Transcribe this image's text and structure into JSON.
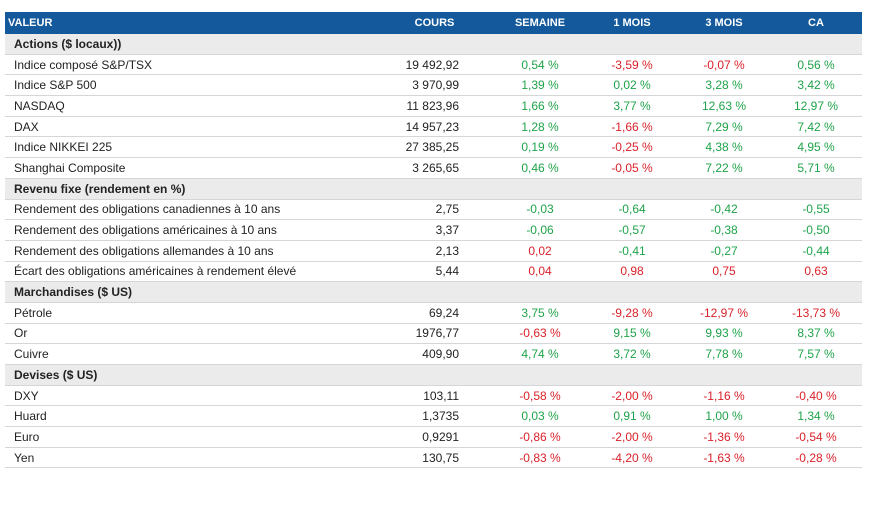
{
  "table": {
    "header": [
      "VALEUR",
      "COURS",
      "SEMAINE",
      "1 MOIS",
      "3 MOIS",
      "CA"
    ],
    "sections": [
      {
        "title": "Actions ($ locaux))",
        "rows": [
          {
            "label": "Indice composé S&P/TSX",
            "cours": "19 492,92",
            "changes": [
              "0,54 %",
              "-3,59 %",
              "-0,07 %",
              "0,56 %"
            ],
            "tones": [
              "green",
              "red",
              "red",
              "green"
            ]
          },
          {
            "label": "Indice S&P 500",
            "cours": "3 970,99",
            "changes": [
              "1,39 %",
              "0,02 %",
              "3,28 %",
              "3,42 %"
            ],
            "tones": [
              "green",
              "green",
              "green",
              "green"
            ]
          },
          {
            "label": "NASDAQ",
            "cours": "11 823,96",
            "changes": [
              "1,66 %",
              "3,77 %",
              "12,63 %",
              "12,97 %"
            ],
            "tones": [
              "green",
              "green",
              "green",
              "green"
            ]
          },
          {
            "label": "DAX",
            "cours": "14 957,23",
            "changes": [
              "1,28 %",
              "-1,66 %",
              "7,29 %",
              "7,42 %"
            ],
            "tones": [
              "green",
              "red",
              "green",
              "green"
            ]
          },
          {
            "label": "Indice NIKKEI 225",
            "cours": "27 385,25",
            "changes": [
              "0,19 %",
              "-0,25 %",
              "4,38 %",
              "4,95 %"
            ],
            "tones": [
              "green",
              "red",
              "green",
              "green"
            ]
          },
          {
            "label": "Shanghai Composite",
            "cours": "3 265,65",
            "changes": [
              "0,46 %",
              "-0,05 %",
              "7,22 %",
              "5,71 %"
            ],
            "tones": [
              "green",
              "red",
              "green",
              "green"
            ]
          }
        ]
      },
      {
        "title": "Revenu fixe (rendement en %)",
        "rows": [
          {
            "label": "Rendement des obligations canadiennes à 10 ans",
            "cours": "2,75",
            "changes": [
              "-0,03",
              "-0,64",
              "-0,42",
              "-0,55"
            ],
            "tones": [
              "green",
              "green",
              "green",
              "green"
            ]
          },
          {
            "label": "Rendement des obligations américaines à 10 ans",
            "cours": "3,37",
            "changes": [
              "-0,06",
              "-0,57",
              "-0,38",
              "-0,50"
            ],
            "tones": [
              "green",
              "green",
              "green",
              "green"
            ]
          },
          {
            "label": "Rendement des obligations allemandes à 10 ans",
            "cours": "2,13",
            "changes": [
              "0,02",
              "-0,41",
              "-0,27",
              "-0,44"
            ],
            "tones": [
              "red",
              "green",
              "green",
              "green"
            ]
          },
          {
            "label": "Écart des obligations américaines à rendement élevé",
            "cours": "5,44",
            "changes": [
              "0,04",
              "0,98",
              "0,75",
              "0,63"
            ],
            "tones": [
              "red",
              "red",
              "red",
              "red"
            ]
          }
        ]
      },
      {
        "title": "Marchandises ($ US)",
        "rows": [
          {
            "label": "Pétrole",
            "cours": "69,24",
            "changes": [
              "3,75 %",
              "-9,28 %",
              "-12,97 %",
              "-13,73 %"
            ],
            "tones": [
              "green",
              "red",
              "red",
              "red"
            ]
          },
          {
            "label": "Or",
            "cours": "1976,77",
            "changes": [
              "-0,63 %",
              "9,15 %",
              "9,93 %",
              "8,37 %"
            ],
            "tones": [
              "red",
              "green",
              "green",
              "green"
            ]
          },
          {
            "label": "Cuivre",
            "cours": "409,90",
            "changes": [
              "4,74 %",
              "3,72 %",
              "7,78 %",
              "7,57 %"
            ],
            "tones": [
              "green",
              "green",
              "green",
              "green"
            ]
          }
        ]
      },
      {
        "title": "Devises ($ US)",
        "rows": [
          {
            "label": "DXY",
            "cours": "103,11",
            "changes": [
              "-0,58 %",
              "-2,00 %",
              "-1,16 %",
              "-0,40 %"
            ],
            "tones": [
              "red",
              "red",
              "red",
              "red"
            ]
          },
          {
            "label": "Huard",
            "cours": "1,3735",
            "changes": [
              "0,03 %",
              "0,91 %",
              "1,00 %",
              "1,34 %"
            ],
            "tones": [
              "green",
              "green",
              "green",
              "green"
            ]
          },
          {
            "label": "Euro",
            "cours": "0,9291",
            "changes": [
              "-0,86 %",
              "-2,00 %",
              "-1,36 %",
              "-0,54 %"
            ],
            "tones": [
              "red",
              "red",
              "red",
              "red"
            ]
          },
          {
            "label": "Yen",
            "cours": "130,75",
            "changes": [
              "-0,83 %",
              "-4,20 %",
              "-1,63 %",
              "-0,28 %"
            ],
            "tones": [
              "red",
              "red",
              "red",
              "red"
            ]
          }
        ]
      }
    ]
  }
}
